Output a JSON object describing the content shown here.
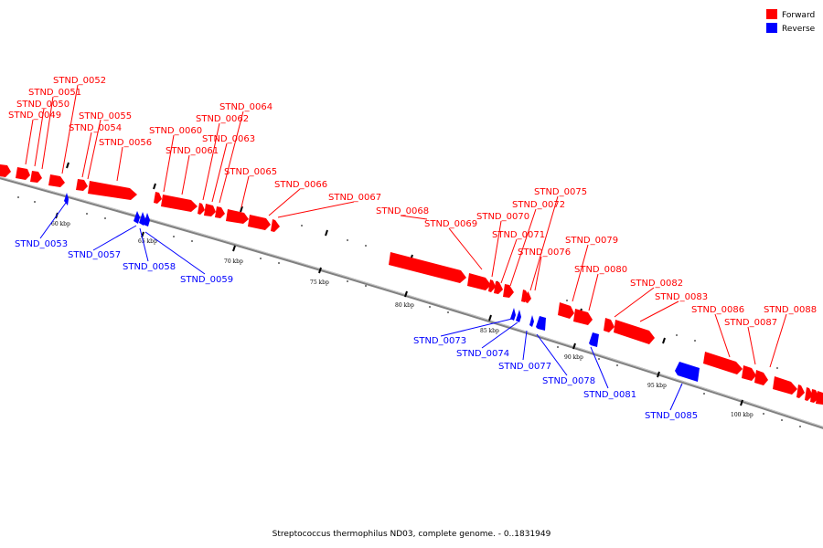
{
  "caption": "Streptococcus thermophilus ND03, complete genome. - 0..1831949",
  "legend": [
    {
      "label": "Forward",
      "color": "#ff0000"
    },
    {
      "label": "Reverse",
      "color": "#0000ff"
    }
  ],
  "colors": {
    "forward": "#ff0000",
    "reverse": "#0000ff",
    "backbone": "#808080",
    "leader_forward": "#ff0000",
    "leader_reverse": "#0000ff"
  },
  "scale_labels": [
    "60 kbp",
    "65 kbp",
    "70 kbp",
    "75 kbp",
    "80 kbp",
    "85 kbp",
    "90 kbp",
    "95 kbp",
    "100 kbp"
  ],
  "forward_gene_labels": [
    "STND_0049",
    "STND_0050",
    "STND_0051",
    "STND_0052",
    "STND_0054",
    "STND_0055",
    "STND_0056",
    "STND_0060",
    "STND_0061",
    "STND_0062",
    "STND_0063",
    "STND_0064",
    "STND_0065",
    "STND_0066",
    "STND_0067",
    "STND_0068",
    "STND_0069",
    "STND_0070",
    "STND_0071",
    "STND_0072",
    "STND_0075",
    "STND_0076",
    "STND_0079",
    "STND_0080",
    "STND_0082",
    "STND_0083",
    "STND_0086",
    "STND_0087",
    "STND_0088"
  ],
  "reverse_gene_labels": [
    "STND_0053",
    "STND_0057",
    "STND_0058",
    "STND_0059",
    "STND_0073",
    "STND_0074",
    "STND_0077",
    "STND_0078",
    "STND_0081",
    "STND_0085"
  ]
}
